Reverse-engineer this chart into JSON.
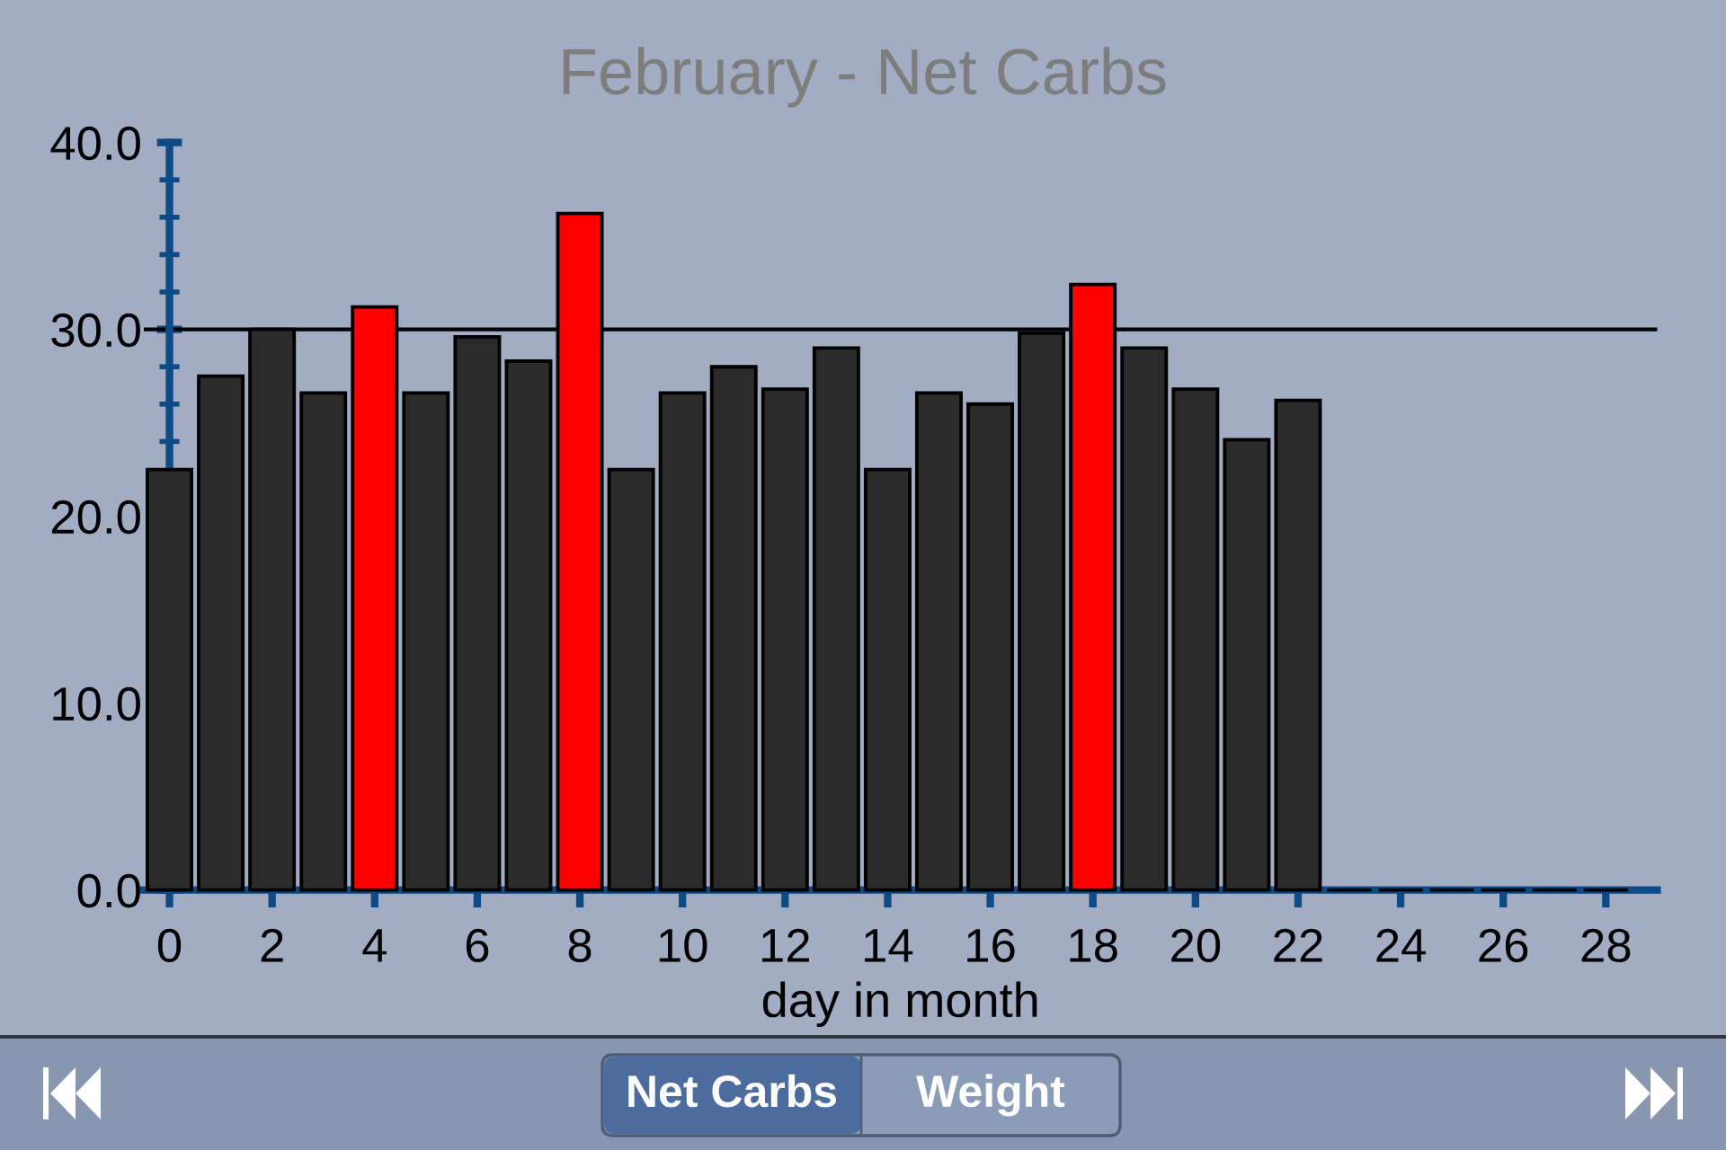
{
  "chart_data": {
    "type": "bar",
    "title": "February - Net Carbs",
    "xlabel": "day in month",
    "x": [
      0,
      1,
      2,
      3,
      4,
      5,
      6,
      7,
      8,
      9,
      10,
      11,
      12,
      13,
      14,
      15,
      16,
      17,
      18,
      19,
      20,
      21,
      22,
      23,
      24,
      25,
      26,
      27,
      28
    ],
    "values": [
      22.5,
      27.5,
      30.0,
      26.6,
      31.2,
      26.6,
      29.6,
      28.3,
      36.2,
      22.5,
      26.6,
      28.0,
      26.8,
      29.0,
      22.5,
      26.6,
      26.0,
      29.8,
      32.4,
      29.0,
      26.8,
      24.1,
      26.2,
      0,
      0,
      0,
      0,
      0,
      0
    ],
    "colors": [
      "#2b2b2b",
      "#2b2b2b",
      "#2b2b2b",
      "#2b2b2b",
      "#ff0000",
      "#2b2b2b",
      "#2b2b2b",
      "#2b2b2b",
      "#ff0000",
      "#2b2b2b",
      "#2b2b2b",
      "#2b2b2b",
      "#2b2b2b",
      "#2b2b2b",
      "#2b2b2b",
      "#2b2b2b",
      "#2b2b2b",
      "#2b2b2b",
      "#ff0000",
      "#2b2b2b",
      "#2b2b2b",
      "#2b2b2b",
      "#2b2b2b",
      "#000000",
      "#000000",
      "#000000",
      "#000000",
      "#000000",
      "#000000"
    ],
    "xlim": [
      -0.5,
      29
    ],
    "xticks": [
      0,
      2,
      4,
      6,
      8,
      10,
      12,
      14,
      16,
      18,
      20,
      22,
      24,
      26,
      28
    ],
    "ylim": [
      0,
      40
    ],
    "yticks": [
      {
        "value": 0,
        "label": "0.0"
      },
      {
        "value": 10,
        "label": "10.0"
      },
      {
        "value": 20,
        "label": "20.0"
      },
      {
        "value": 24,
        "label": null
      },
      {
        "value": 26,
        "label": null
      },
      {
        "value": 28,
        "label": null
      },
      {
        "value": 30,
        "label": "30.0"
      },
      {
        "value": 32,
        "label": null
      },
      {
        "value": 34,
        "label": null
      },
      {
        "value": 36,
        "label": null
      },
      {
        "value": 38,
        "label": null
      },
      {
        "value": 40,
        "label": "40.0"
      }
    ],
    "ref_lines": [
      {
        "axis": "y",
        "value": 30,
        "color": "#000000"
      }
    ],
    "annotations": [
      "Net Carbs",
      "Weight"
    ]
  }
}
